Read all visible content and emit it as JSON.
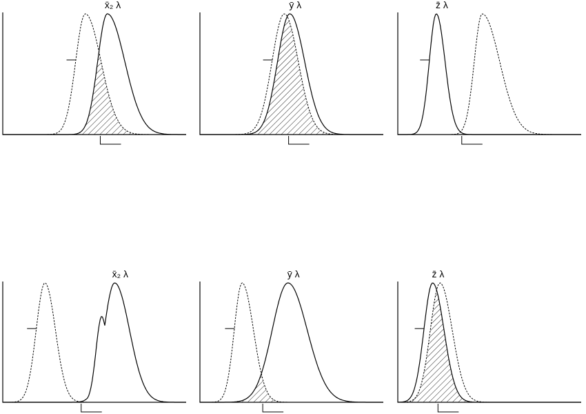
{
  "panels": [
    {
      "id": "top-left",
      "label": "x̄₂ λ",
      "solid": {
        "peak": 0.57,
        "width": 0.2,
        "left_width": 0.11
      },
      "dashed": {
        "peak": 0.45,
        "width": 0.18,
        "left_width": 0.11
      },
      "shoulder": false
    },
    {
      "id": "top-middle",
      "label": "ȳ λ",
      "solid": {
        "peak": 0.49,
        "width": 0.17,
        "left_width": 0.14
      },
      "dashed": {
        "peak": 0.46,
        "width": 0.16,
        "left_width": 0.14
      },
      "shoulder": false
    },
    {
      "id": "top-right",
      "label": "z̄ λ",
      "solid": {
        "peak": 0.21,
        "width": 0.1,
        "left_width": 0.08
      },
      "dashed": {
        "peak": 0.46,
        "width": 0.2,
        "left_width": 0.09
      },
      "shoulder": false
    },
    {
      "id": "bottom-left",
      "label": "x̄₂ λ",
      "solid": {
        "peak": 0.61,
        "width": 0.17,
        "left_width": 0.12
      },
      "dashed": {
        "peak": 0.23,
        "width": 0.12,
        "left_width": 0.1
      },
      "shoulder": true
    },
    {
      "id": "bottom-middle",
      "label": "ȳ λ",
      "solid": {
        "peak": 0.48,
        "width": 0.22,
        "left_width": 0.18
      },
      "dashed": {
        "peak": 0.23,
        "width": 0.13,
        "left_width": 0.09
      },
      "shoulder": false
    },
    {
      "id": "bottom-right",
      "label": "z̄ λ",
      "solid": {
        "peak": 0.19,
        "width": 0.13,
        "left_width": 0.1
      },
      "dashed": {
        "peak": 0.23,
        "width": 0.14,
        "left_width": 0.11
      },
      "shoulder": false
    }
  ]
}
